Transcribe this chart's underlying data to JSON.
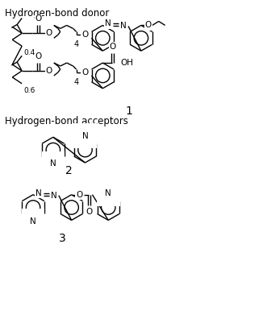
{
  "title_donor": "Hydrogen-bond donor",
  "title_acceptors": "Hydrogen-bond acceptors",
  "label1": "1",
  "label2": "2",
  "label3": "3",
  "bg_color": "#ffffff",
  "line_color": "#000000",
  "text_color": "#000000",
  "font_size": 7.5,
  "title_font_size": 8.5,
  "label_font_size": 9
}
